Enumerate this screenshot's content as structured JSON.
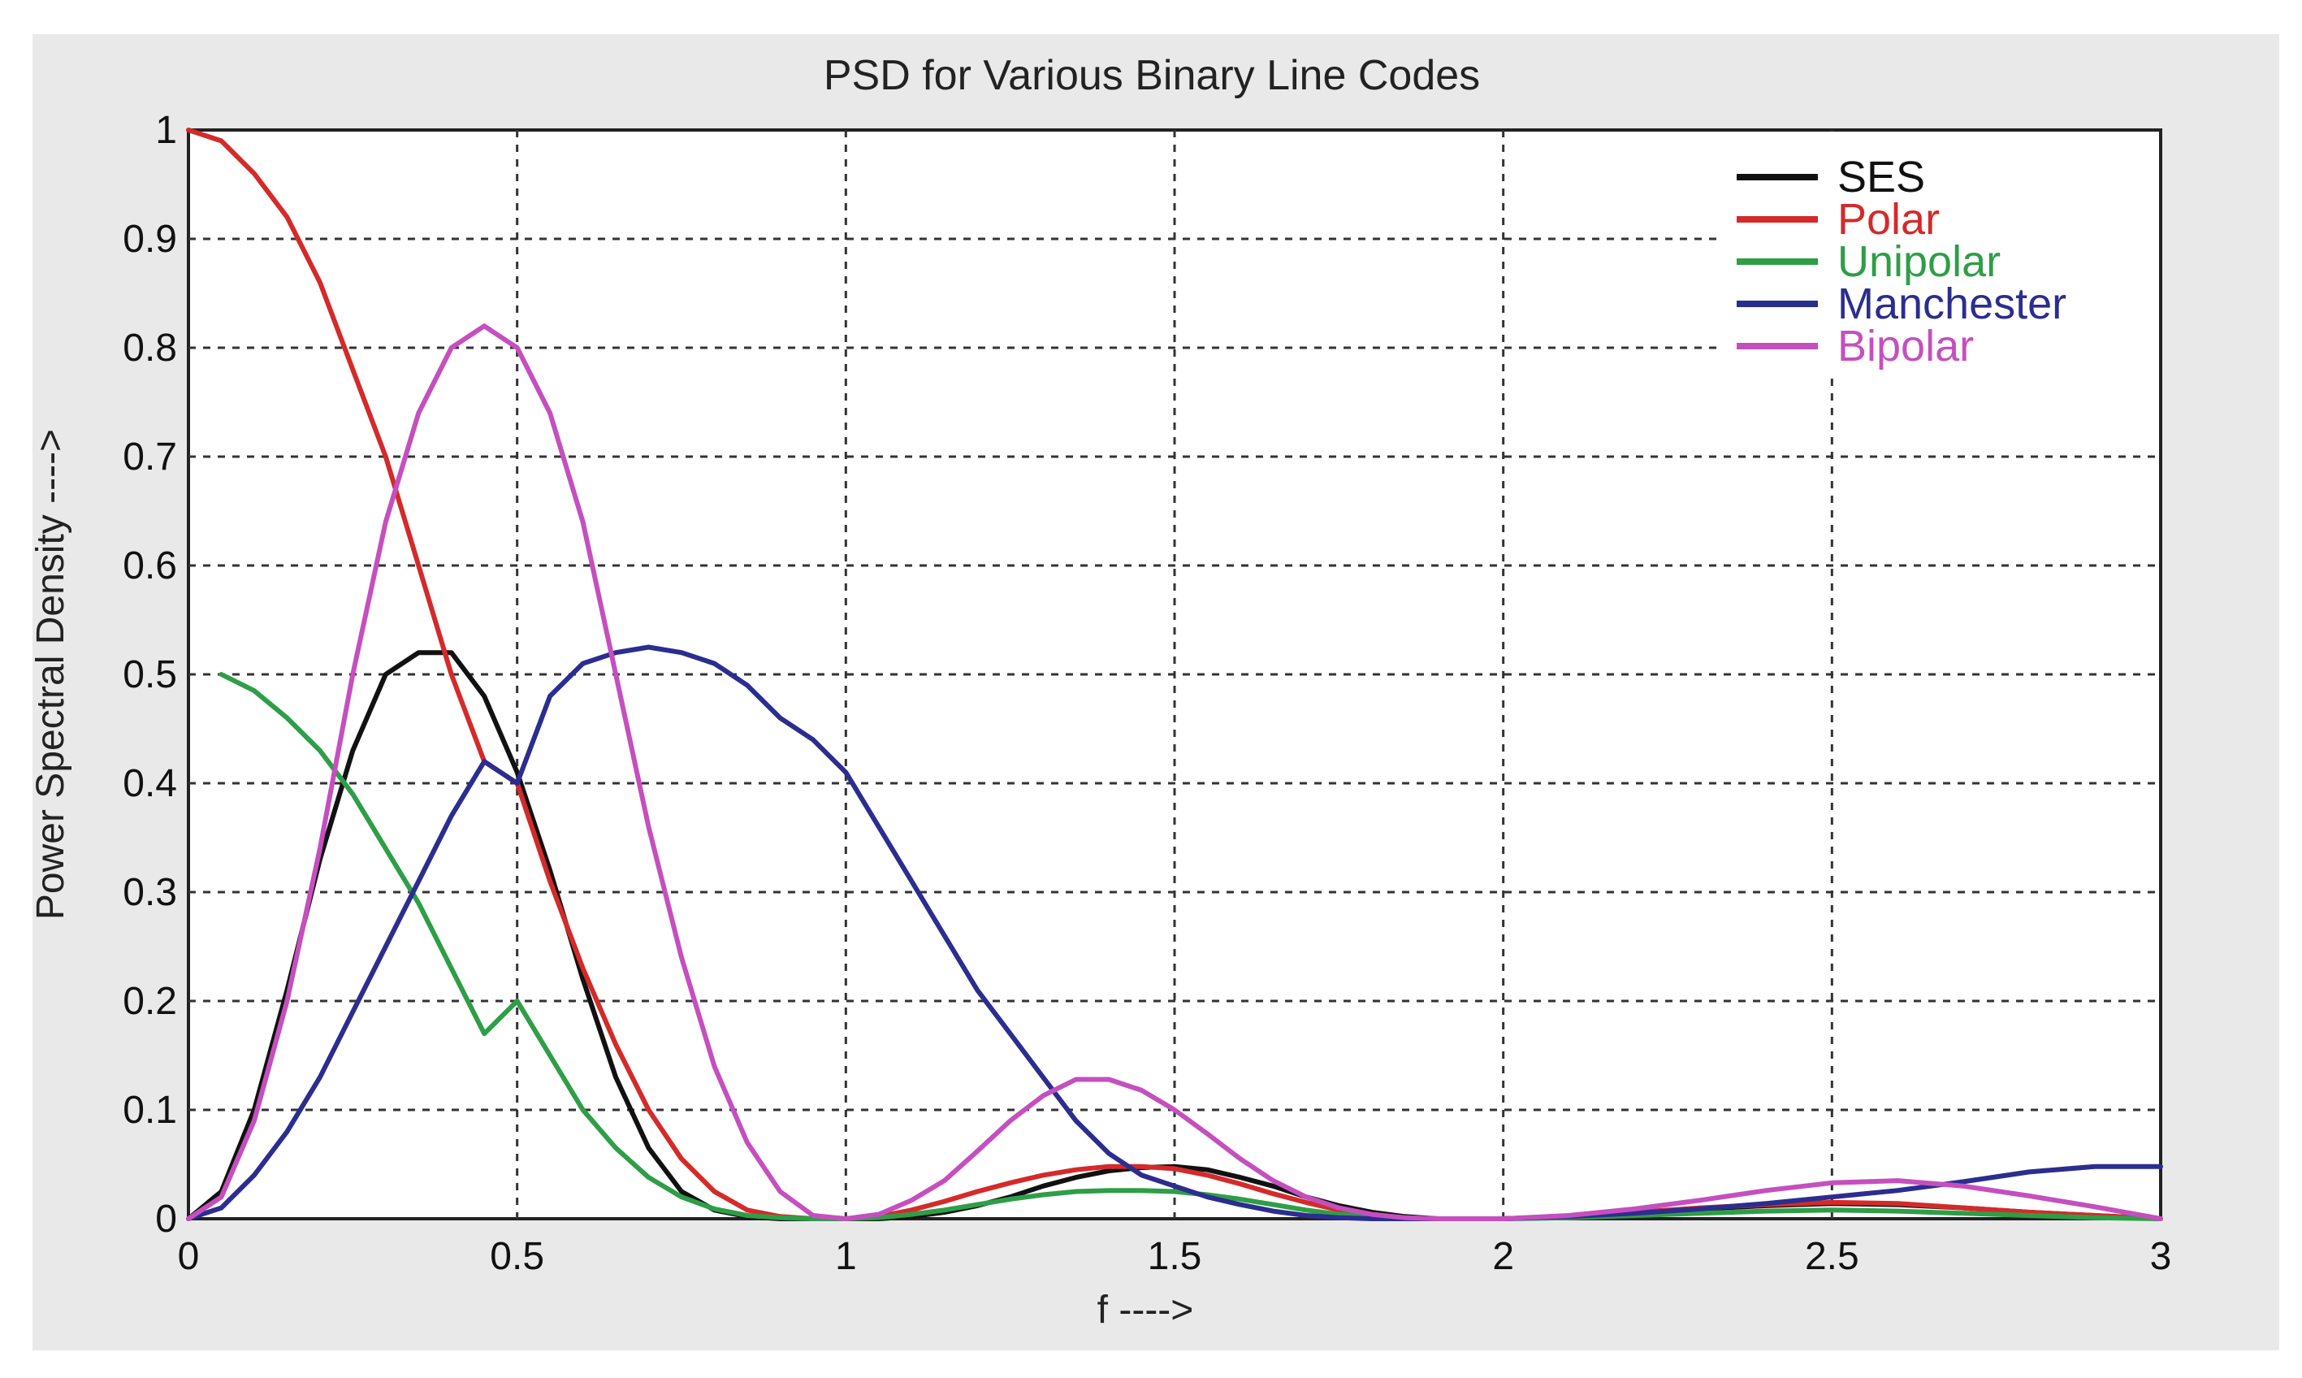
{
  "chart_data": {
    "type": "line",
    "title": "PSD for Various Binary Line Codes",
    "xlabel": "f ---->",
    "ylabel": "Power Spectral Density ---->",
    "xlim": [
      0,
      3
    ],
    "ylim": [
      0,
      1
    ],
    "xticks": [
      0,
      0.5,
      1,
      1.5,
      2,
      2.5,
      3
    ],
    "xtick_labels": [
      "0",
      "0.5",
      "1",
      "1.5",
      "2",
      "2.5",
      "3"
    ],
    "yticks": [
      0,
      0.1,
      0.2,
      0.3,
      0.4,
      0.5,
      0.6,
      0.7,
      0.8,
      0.9,
      1
    ],
    "ytick_labels": [
      "0",
      "0.1",
      "0.2",
      "0.3",
      "0.4",
      "0.5",
      "0.6",
      "0.7",
      "0.8",
      "0.9",
      "1"
    ],
    "grid": true,
    "legend_position": "top-right",
    "series": [
      {
        "name": "SES",
        "color": "#111111",
        "x": [
          0,
          0.05,
          0.1,
          0.15,
          0.2,
          0.25,
          0.3,
          0.35,
          0.4,
          0.45,
          0.5,
          0.55,
          0.6,
          0.65,
          0.7,
          0.75,
          0.8,
          0.85,
          0.9,
          0.95,
          1.0,
          1.05,
          1.1,
          1.15,
          1.2,
          1.25,
          1.3,
          1.35,
          1.4,
          1.45,
          1.5,
          1.55,
          1.6,
          1.65,
          1.7,
          1.75,
          1.8,
          1.85,
          1.9,
          1.95,
          2.0,
          2.1,
          2.2,
          2.3,
          2.4,
          2.5,
          2.6,
          2.7,
          2.8,
          2.9,
          3.0
        ],
        "y": [
          0,
          0.025,
          0.1,
          0.21,
          0.33,
          0.43,
          0.5,
          0.52,
          0.52,
          0.48,
          0.41,
          0.32,
          0.22,
          0.13,
          0.065,
          0.025,
          0.008,
          0.002,
          0,
          0,
          0,
          0,
          0.002,
          0.006,
          0.012,
          0.02,
          0.03,
          0.038,
          0.044,
          0.047,
          0.048,
          0.045,
          0.038,
          0.03,
          0.02,
          0.012,
          0.006,
          0.002,
          0,
          0,
          0,
          0.002,
          0.005,
          0.009,
          0.012,
          0.014,
          0.013,
          0.01,
          0.006,
          0.003,
          0
        ]
      },
      {
        "name": "Polar",
        "color": "#d42a2a",
        "x": [
          0,
          0.05,
          0.1,
          0.15,
          0.2,
          0.25,
          0.3,
          0.35,
          0.4,
          0.45,
          0.5,
          0.55,
          0.6,
          0.65,
          0.7,
          0.75,
          0.8,
          0.85,
          0.9,
          0.95,
          1.0,
          1.05,
          1.1,
          1.15,
          1.2,
          1.25,
          1.3,
          1.35,
          1.4,
          1.45,
          1.5,
          1.55,
          1.6,
          1.65,
          1.7,
          1.75,
          1.8,
          1.85,
          1.9,
          1.95,
          2.0,
          2.1,
          2.2,
          2.3,
          2.4,
          2.5,
          2.6,
          2.7,
          2.8,
          2.9,
          3.0
        ],
        "y": [
          1.0,
          0.99,
          0.96,
          0.92,
          0.86,
          0.78,
          0.7,
          0.6,
          0.5,
          0.42,
          0.4,
          0.31,
          0.23,
          0.16,
          0.1,
          0.055,
          0.025,
          0.008,
          0.002,
          0,
          0,
          0.002,
          0.008,
          0.016,
          0.025,
          0.033,
          0.04,
          0.045,
          0.048,
          0.048,
          0.046,
          0.04,
          0.032,
          0.023,
          0.015,
          0.008,
          0.003,
          0.001,
          0,
          0,
          0,
          0.002,
          0.006,
          0.01,
          0.013,
          0.015,
          0.014,
          0.01,
          0.006,
          0.003,
          0
        ]
      },
      {
        "name": "Unipolar",
        "color": "#2e9e47",
        "x": [
          0.05,
          0.1,
          0.15,
          0.2,
          0.25,
          0.3,
          0.35,
          0.4,
          0.45,
          0.5,
          0.55,
          0.6,
          0.65,
          0.7,
          0.75,
          0.8,
          0.85,
          0.9,
          0.95,
          1.0,
          1.05,
          1.1,
          1.15,
          1.2,
          1.25,
          1.3,
          1.35,
          1.4,
          1.45,
          1.5,
          1.55,
          1.6,
          1.65,
          1.7,
          1.75,
          1.8,
          1.85,
          1.9,
          1.95,
          2.0,
          2.1,
          2.2,
          2.3,
          2.4,
          2.5,
          2.6,
          2.7,
          2.8,
          2.9,
          3.0
        ],
        "y": [
          0.5,
          0.485,
          0.46,
          0.43,
          0.39,
          0.34,
          0.29,
          0.23,
          0.17,
          0.2,
          0.15,
          0.1,
          0.065,
          0.038,
          0.02,
          0.009,
          0.003,
          0.001,
          0,
          0,
          0.001,
          0.004,
          0.008,
          0.013,
          0.018,
          0.022,
          0.025,
          0.026,
          0.026,
          0.025,
          0.022,
          0.018,
          0.013,
          0.008,
          0.004,
          0.002,
          0,
          0,
          0,
          0,
          0.001,
          0.003,
          0.005,
          0.007,
          0.008,
          0.007,
          0.005,
          0.003,
          0.001,
          0
        ]
      },
      {
        "name": "Manchester",
        "color": "#2b2d8f",
        "x": [
          0,
          0.05,
          0.1,
          0.15,
          0.2,
          0.25,
          0.3,
          0.35,
          0.4,
          0.45,
          0.5,
          0.55,
          0.6,
          0.65,
          0.7,
          0.75,
          0.8,
          0.85,
          0.9,
          0.95,
          1.0,
          1.05,
          1.1,
          1.15,
          1.2,
          1.25,
          1.3,
          1.35,
          1.4,
          1.45,
          1.5,
          1.55,
          1.6,
          1.65,
          1.7,
          1.75,
          1.8,
          1.85,
          1.9,
          1.95,
          2.0,
          2.1,
          2.2,
          2.3,
          2.4,
          2.5,
          2.6,
          2.7,
          2.8,
          2.9,
          3.0
        ],
        "y": [
          0,
          0.01,
          0.04,
          0.08,
          0.13,
          0.19,
          0.25,
          0.31,
          0.37,
          0.42,
          0.4,
          0.48,
          0.51,
          0.52,
          0.525,
          0.52,
          0.51,
          0.49,
          0.46,
          0.44,
          0.41,
          0.36,
          0.31,
          0.26,
          0.21,
          0.17,
          0.13,
          0.09,
          0.06,
          0.04,
          0.03,
          0.02,
          0.013,
          0.007,
          0.003,
          0.001,
          0,
          0,
          0,
          0,
          0,
          0.002,
          0.005,
          0.009,
          0.014,
          0.02,
          0.026,
          0.034,
          0.043,
          0.048,
          0.048
        ]
      },
      {
        "name": "Bipolar",
        "color": "#c54fbf",
        "x": [
          0,
          0.05,
          0.1,
          0.15,
          0.2,
          0.25,
          0.3,
          0.35,
          0.4,
          0.45,
          0.5,
          0.55,
          0.6,
          0.65,
          0.7,
          0.75,
          0.8,
          0.85,
          0.9,
          0.95,
          1.0,
          1.05,
          1.1,
          1.15,
          1.2,
          1.25,
          1.3,
          1.35,
          1.4,
          1.45,
          1.5,
          1.55,
          1.6,
          1.65,
          1.7,
          1.75,
          1.8,
          1.85,
          1.9,
          1.95,
          2.0,
          2.1,
          2.2,
          2.3,
          2.4,
          2.5,
          2.6,
          2.7,
          2.8,
          2.9,
          3.0
        ],
        "y": [
          0,
          0.02,
          0.09,
          0.2,
          0.34,
          0.5,
          0.64,
          0.74,
          0.8,
          0.82,
          0.8,
          0.74,
          0.64,
          0.5,
          0.36,
          0.24,
          0.14,
          0.07,
          0.025,
          0.003,
          0,
          0.004,
          0.017,
          0.035,
          0.062,
          0.09,
          0.113,
          0.128,
          0.128,
          0.118,
          0.1,
          0.078,
          0.055,
          0.035,
          0.02,
          0.01,
          0.004,
          0.001,
          0,
          0,
          0,
          0.003,
          0.009,
          0.017,
          0.026,
          0.033,
          0.035,
          0.03,
          0.021,
          0.011,
          0
        ]
      }
    ]
  }
}
